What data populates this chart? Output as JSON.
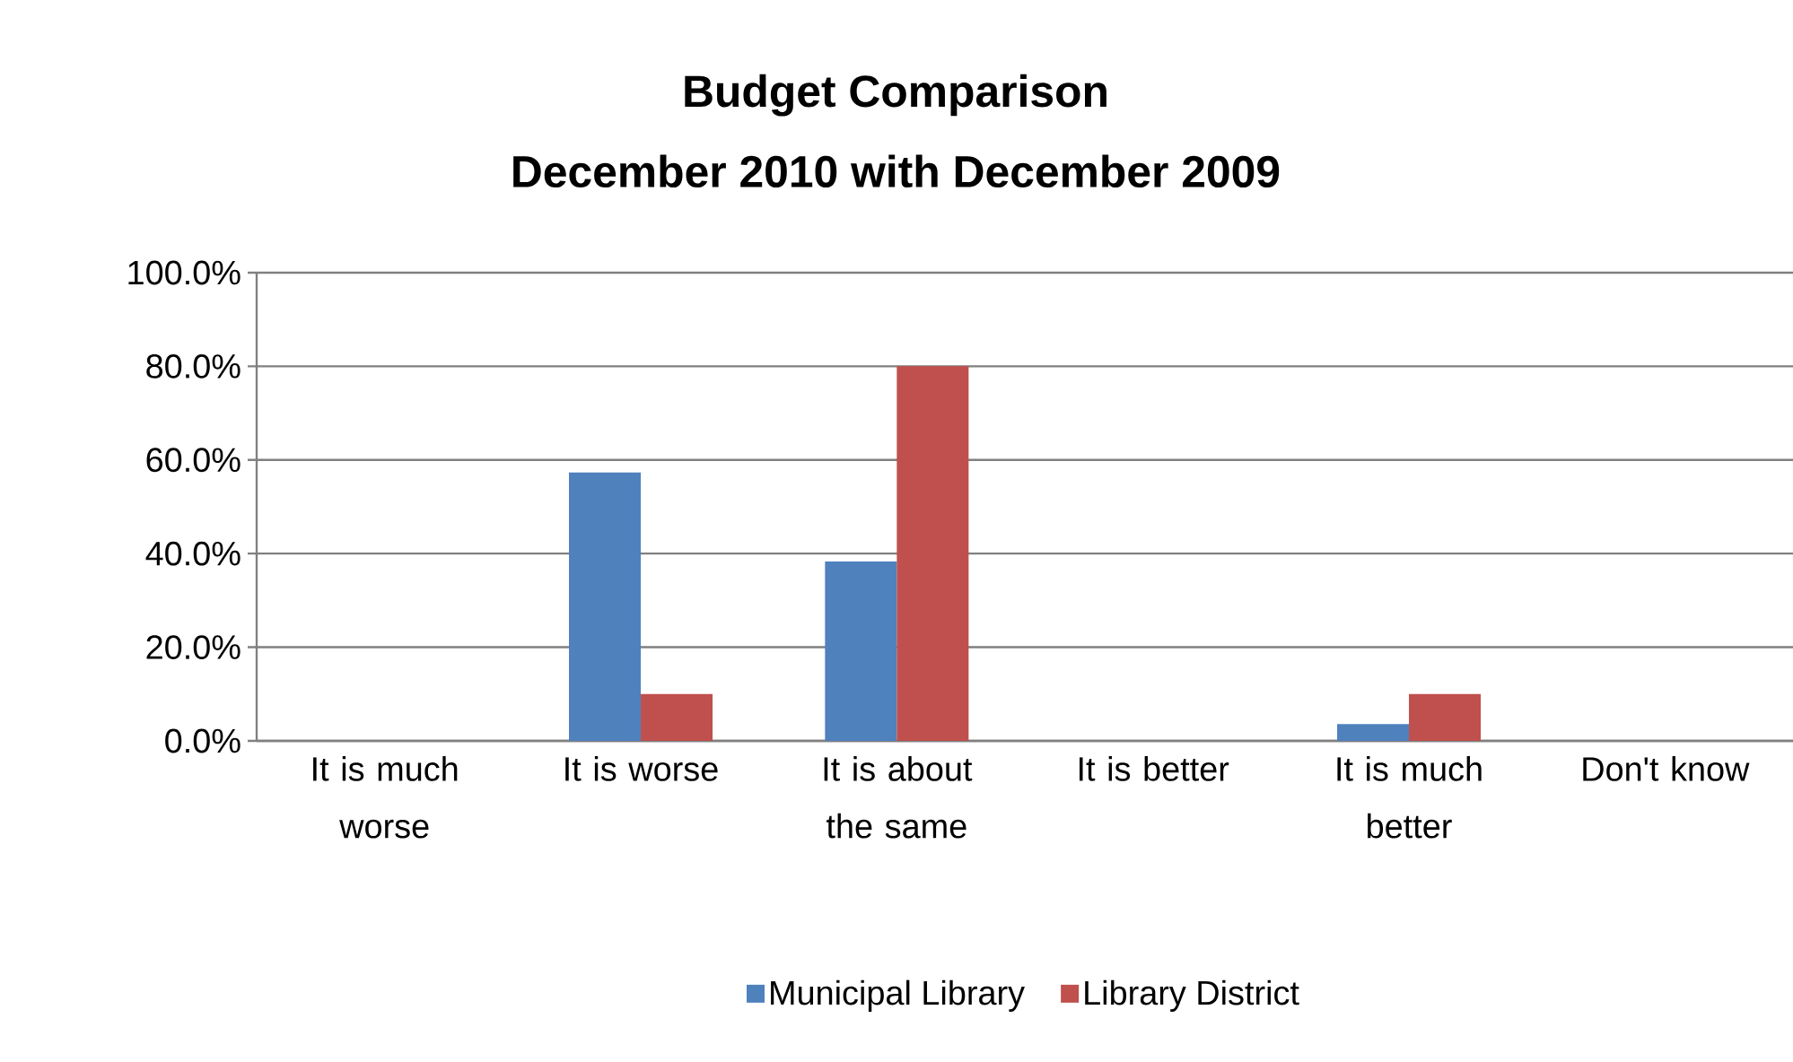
{
  "chart_data": {
    "type": "bar",
    "title": "Budget Comparison",
    "subtitle": "December 2010 with December 2009",
    "categories": [
      "It is much worse",
      "It is worse",
      "It is about the same",
      "It is better",
      "It is much better",
      "Don't know"
    ],
    "series": [
      {
        "name": "Municipal Library",
        "color": "#4f81bd",
        "values": [
          0,
          57.3,
          38.3,
          0,
          3.6,
          0
        ]
      },
      {
        "name": "Library District",
        "color": "#c0504d",
        "values": [
          0,
          10,
          80,
          0,
          10,
          0
        ]
      }
    ],
    "ylim": [
      0,
      100
    ],
    "yticks": [
      {
        "value": 0,
        "label": "0.0%"
      },
      {
        "value": 20,
        "label": "20.0%"
      },
      {
        "value": 40,
        "label": "40.0%"
      },
      {
        "value": 60,
        "label": "60.0%"
      },
      {
        "value": 80,
        "label": "80.0%"
      },
      {
        "value": 100,
        "label": "100.0%"
      }
    ],
    "grid": "y",
    "legend": "bottom"
  }
}
